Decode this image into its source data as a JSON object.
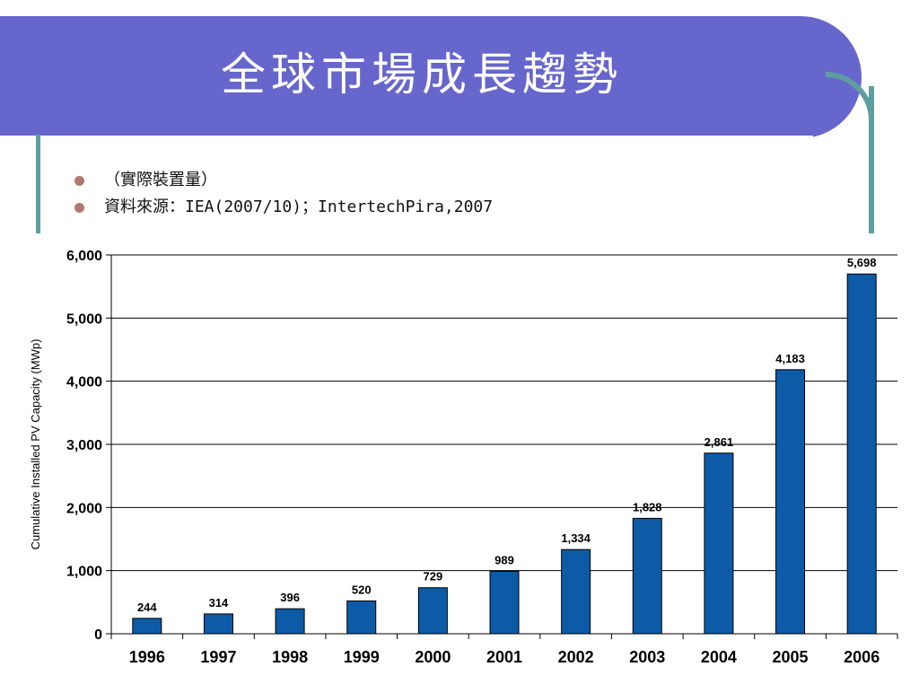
{
  "slide": {
    "title": "全球市場成長趨勢",
    "bullets": [
      "（實際裝置量）",
      "資料來源：IEA(2007/10)；IntertechPira,2007"
    ]
  },
  "colors": {
    "banner": "#6666cc",
    "frame": "#5f9e9e",
    "bar": "#0d5aa7",
    "bullet": "#b07a70"
  },
  "chart_data": {
    "type": "bar",
    "categories": [
      "1996",
      "1997",
      "1998",
      "1999",
      "2000",
      "2001",
      "2002",
      "2003",
      "2004",
      "2005",
      "2006"
    ],
    "values": [
      244,
      314,
      396,
      520,
      729,
      989,
      1334,
      1828,
      2861,
      4183,
      5698
    ],
    "value_labels": [
      "244",
      "314",
      "396",
      "520",
      "729",
      "989",
      "1,334",
      "1,828",
      "2,861",
      "4,183",
      "5,698"
    ],
    "ylabel": "Cumulative Installed PV Capacity (MWp)",
    "ylim": [
      0,
      6000
    ],
    "yticks": [
      0,
      1000,
      2000,
      3000,
      4000,
      5000,
      6000
    ],
    "ytick_labels": [
      "0",
      "1,000",
      "2,000",
      "3,000",
      "4,000",
      "5,000",
      "6,000"
    ],
    "grid": true,
    "legend": "none"
  }
}
